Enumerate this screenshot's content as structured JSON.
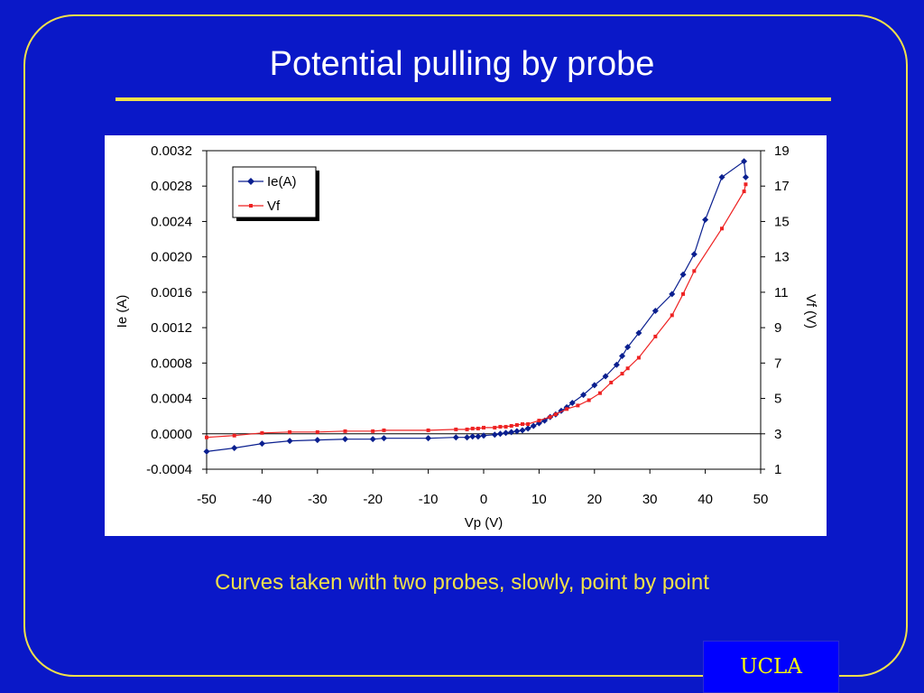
{
  "slide": {
    "title": "Potential pulling by probe",
    "caption": "Curves taken with two probes, slowly, point by point",
    "badge": "UCLA"
  },
  "colors": {
    "background": "#0a18c8",
    "accent": "#f0e04a",
    "badge_bg": "#0000ff",
    "badge_text": "#ffff00",
    "series_ie": "#0a1f8f",
    "series_vf": "#ee2222"
  },
  "chart_data": {
    "type": "line",
    "title": "",
    "xlabel": "Vp (V)",
    "ylabel": "Ie (A)",
    "y2label": "Vf (V)",
    "xlim": [
      -50,
      50
    ],
    "ylim": [
      -0.0004,
      0.0032
    ],
    "y2lim": [
      1,
      19
    ],
    "xticks": [
      "-50",
      "-40",
      "-30",
      "-20",
      "-10",
      "0",
      "10",
      "20",
      "30",
      "40",
      "50"
    ],
    "yticks": [
      "-0.0004",
      "0.0000",
      "0.0004",
      "0.0008",
      "0.0012",
      "0.0016",
      "0.0020",
      "0.0024",
      "0.0028",
      "0.0032"
    ],
    "y2ticks": [
      "1",
      "3",
      "5",
      "7",
      "9",
      "11",
      "13",
      "15",
      "17",
      "19"
    ],
    "grid": false,
    "zero_line": true,
    "legend": "top-left",
    "series": [
      {
        "name": "Ie(A)",
        "axis": "left",
        "marker": "diamond",
        "x": [
          -50,
          -45,
          -40,
          -35,
          -30,
          -25,
          -20,
          -18,
          -10,
          -5,
          -3,
          -2,
          -1,
          0,
          2,
          3,
          4,
          5,
          6,
          7,
          8,
          9,
          10,
          11,
          12,
          13,
          14,
          15,
          16,
          18,
          20,
          22,
          24,
          25,
          26,
          28,
          31,
          34,
          36,
          38,
          40,
          43,
          47,
          47.3
        ],
        "values": [
          -0.0002,
          -0.00016,
          -0.00011,
          -8e-05,
          -7e-05,
          -6e-05,
          -6e-05,
          -5e-05,
          -5e-05,
          -4e-05,
          -4e-05,
          -3e-05,
          -3e-05,
          -2e-05,
          -1e-05,
          0.0,
          1e-05,
          2e-05,
          3e-05,
          4e-05,
          6e-05,
          9e-05,
          0.00012,
          0.00015,
          0.00019,
          0.00022,
          0.00026,
          0.0003,
          0.00035,
          0.00044,
          0.00055,
          0.00065,
          0.00078,
          0.00088,
          0.00098,
          0.00114,
          0.00139,
          0.00158,
          0.0018,
          0.00203,
          0.00242,
          0.0029,
          0.00308,
          0.0029
        ]
      },
      {
        "name": "Vf",
        "axis": "right",
        "marker": "square",
        "x": [
          -50,
          -45,
          -40,
          -35,
          -30,
          -25,
          -20,
          -18,
          -10,
          -5,
          -3,
          -2,
          -1,
          0,
          2,
          3,
          4,
          5,
          6,
          7,
          8,
          10,
          12,
          13,
          15,
          17,
          19,
          21,
          23,
          25,
          26,
          28,
          31,
          34,
          36,
          38,
          43,
          47,
          47.3
        ],
        "values": [
          2.8,
          2.9,
          3.05,
          3.1,
          3.1,
          3.15,
          3.15,
          3.2,
          3.2,
          3.25,
          3.25,
          3.3,
          3.3,
          3.35,
          3.35,
          3.4,
          3.4,
          3.45,
          3.5,
          3.55,
          3.55,
          3.75,
          3.95,
          4.1,
          4.4,
          4.6,
          4.9,
          5.3,
          5.9,
          6.4,
          6.7,
          7.3,
          8.5,
          9.7,
          10.9,
          12.2,
          14.6,
          16.7,
          17.1
        ]
      }
    ]
  }
}
